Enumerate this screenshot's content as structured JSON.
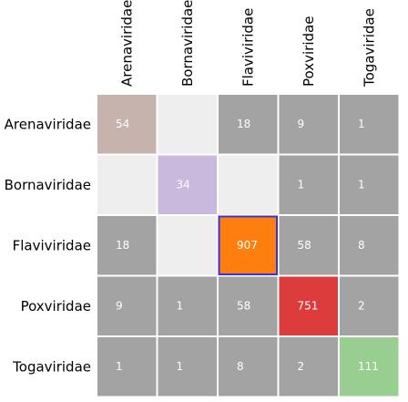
{
  "chart_data": {
    "type": "heatmap",
    "categories": [
      "Arenaviridae",
      "Bornaviridae",
      "Flaviviridae",
      "Poxviridae",
      "Togaviridae"
    ],
    "highlighted_category": "Flaviviridae",
    "highlight_label_color": "#ff0000",
    "selected_cell": {
      "row": "Flaviviridae",
      "col": "Flaviviridae"
    },
    "selection_border_color": "#3333ee",
    "matrix": [
      [
        54,
        null,
        18,
        9,
        1
      ],
      [
        null,
        34,
        null,
        1,
        1
      ],
      [
        18,
        null,
        907,
        58,
        8
      ],
      [
        9,
        1,
        58,
        751,
        2
      ],
      [
        1,
        1,
        8,
        2,
        111
      ]
    ],
    "colors": {
      "diagonal": [
        "#c7b3ae",
        "#c9b9dc",
        "#ff7f0e",
        "#dd3c3c",
        "#98cf91"
      ],
      "off_diagonal": "#a3a3a3",
      "empty": "#eeeeee",
      "grid": "#ffffff",
      "text": "#ffffff"
    }
  }
}
